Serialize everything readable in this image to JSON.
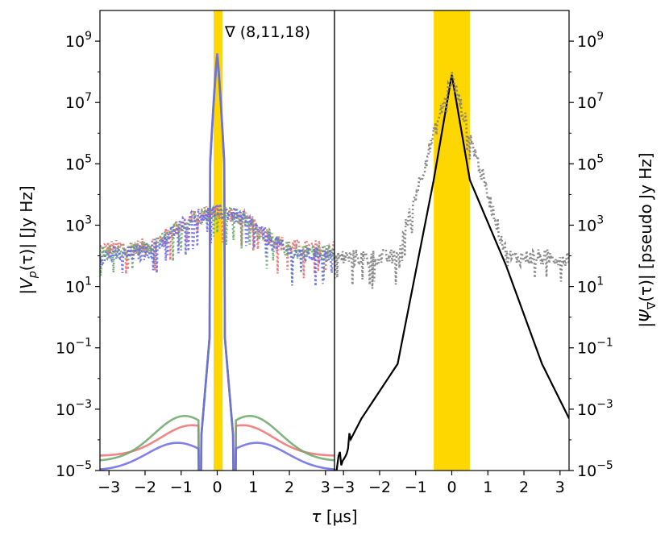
{
  "chart_data": [
    {
      "type": "line",
      "panel": "left",
      "ylabel": "|Ṽ_p(τ)| [Jy Hz]",
      "ylabel_parts": {
        "open": "|",
        "sym": "V",
        "sub": "p",
        "mid": "(τ)| [Jy Hz]"
      },
      "xlim": [
        -3.25,
        3.25
      ],
      "ylim": [
        1e-05,
        10000000000.0
      ],
      "yscale": "log",
      "xticks": [
        -3,
        -2,
        -1,
        0,
        1,
        2,
        3
      ],
      "xtick_labels": [
        "−3",
        "−2",
        "−1",
        "0",
        "1",
        "2",
        "3"
      ],
      "yticks": [
        1e-05,
        0.001,
        0.1,
        10.0,
        1000.0,
        100000.0,
        10000000.0,
        1000000000.0
      ],
      "ytick_labels": [
        {
          "base": "10",
          "exp": "−5"
        },
        {
          "base": "10",
          "exp": "−3"
        },
        {
          "base": "10",
          "exp": "−1"
        },
        {
          "base": "10",
          "exp": "1"
        },
        {
          "base": "10",
          "exp": "3"
        },
        {
          "base": "10",
          "exp": "5"
        },
        {
          "base": "10",
          "exp": "7"
        },
        {
          "base": "10",
          "exp": "9"
        }
      ],
      "highlight_band": {
        "x0": -0.1,
        "x1": 0.15,
        "color": "#ffd700"
      },
      "annotation": "∇ (8,11,18)",
      "series": [
        {
          "name": "model-red",
          "color": "#f07070",
          "style": "solid",
          "peak_tau": 0.0,
          "peak_value": 300000000.0,
          "wing_level": [
            3e-05,
            0.0003
          ]
        },
        {
          "name": "model-green",
          "color": "#6aa86a",
          "style": "solid",
          "peak_tau": 0.0,
          "peak_value": 300000000.0,
          "wing_level": [
            2e-05,
            0.0006
          ]
        },
        {
          "name": "model-blue",
          "color": "#6a6ae8",
          "style": "solid",
          "peak_tau": 0.0,
          "peak_value": 400000000.0,
          "wing_level": [
            1e-05,
            8e-05
          ]
        },
        {
          "name": "data-red",
          "color": "#f07070",
          "style": "dotted",
          "noise_floor": 200,
          "central_bump": 3000.0
        },
        {
          "name": "data-green",
          "color": "#6aa86a",
          "style": "dotted",
          "noise_floor": 150,
          "central_bump": 3000.0
        },
        {
          "name": "data-blue",
          "color": "#6a6ae8",
          "style": "dotted",
          "noise_floor": 120,
          "central_bump": 3000.0
        }
      ]
    },
    {
      "type": "line",
      "panel": "right",
      "ylabel": "|Ψ̃_∇(τ)| [pseudo Jy Hz]",
      "ylabel_parts": {
        "open": "|",
        "sym": "Ψ",
        "sub": "∇",
        "mid": "(τ)| [pseudo Jy Hz]"
      },
      "xlim": [
        -3.25,
        3.25
      ],
      "ylim": [
        1e-05,
        10000000000.0
      ],
      "yscale": "log",
      "xticks": [
        -3,
        -2,
        -1,
        0,
        1,
        2,
        3
      ],
      "xtick_labels": [
        "−3",
        "−2",
        "−1",
        "0",
        "1",
        "2",
        "3"
      ],
      "yticks": [
        1e-05,
        0.001,
        0.1,
        10.0,
        1000.0,
        100000.0,
        10000000.0,
        1000000000.0
      ],
      "highlight_band": {
        "x0": -0.5,
        "x1": 0.5,
        "color": "#ffd700"
      },
      "series": [
        {
          "name": "model",
          "color": "#000000",
          "style": "solid",
          "x": [
            -3.25,
            -2.5,
            -1.5,
            -0.5,
            0.0,
            0.5,
            1.5,
            2.5,
            3.25
          ],
          "y": [
            1e-05,
            0.0005,
            0.03,
            30000.0,
            80000000.0,
            30000.0,
            50.0,
            0.03,
            0.0005
          ]
        },
        {
          "name": "data",
          "color": "#808080",
          "style": "dotted",
          "noise_floor": 100
        }
      ]
    }
  ],
  "xlabel": "τ [μs]",
  "xlabel_parts": {
    "sym": "τ",
    "rest": " [μs]"
  }
}
